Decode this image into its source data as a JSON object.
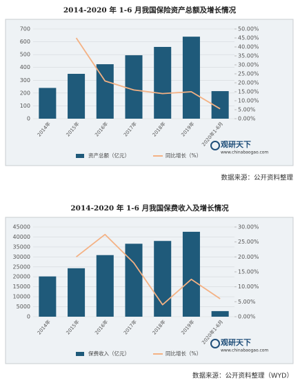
{
  "chart_data": [
    {
      "type": "bar_line",
      "title": "2014-2020 年 1-6 月我国保险资产总额及增长情况",
      "categories": [
        "2014年",
        "2015年",
        "2016年",
        "2017年",
        "2018年",
        "2019年",
        "2020年1-6月"
      ],
      "series": [
        {
          "name": "资产总额（亿元）",
          "color": "#1f5a7a",
          "values": [
            240,
            350,
            425,
            495,
            560,
            640,
            215
          ]
        },
        {
          "name": "同比增长（%）",
          "color": "#f4b183",
          "axis": "y2",
          "values": [
            null,
            45,
            21,
            16,
            14,
            15,
            5.5
          ]
        }
      ],
      "ylim": [
        0,
        700
      ],
      "yticks": [
        0,
        100,
        200,
        300,
        400,
        500,
        600,
        700
      ],
      "y2lim": [
        0,
        50
      ],
      "y2ticks": [
        {
          "value": 0,
          "label": "0.00%"
        },
        {
          "value": 5,
          "label": "5.00%"
        },
        {
          "value": 10,
          "label": "10.00%"
        },
        {
          "value": 15,
          "label": "15.00%"
        },
        {
          "value": 20,
          "label": "20.00%"
        },
        {
          "value": 25,
          "label": "25.00%"
        },
        {
          "value": 30,
          "label": "30.00%"
        },
        {
          "value": 35,
          "label": "35.00%"
        },
        {
          "value": 40,
          "label": "40.00%"
        },
        {
          "value": 45,
          "label": "45.00%"
        },
        {
          "value": 50,
          "label": "50.00%"
        }
      ],
      "grid": true,
      "brand": "观研天下",
      "brand_url": "www.chinabaogao.com",
      "source": "数据来源：公开资料整理"
    },
    {
      "type": "bar_line",
      "title": "2014-2020 年 1-6 月我国保费收入及增长情况",
      "categories": [
        "2014年",
        "2015年",
        "2016年",
        "2017年",
        "2018年",
        "2019年",
        "2020年1-6月"
      ],
      "series": [
        {
          "name": "保费收入（亿元）",
          "color": "#1f5a7a",
          "values": [
            20200,
            24300,
            30900,
            36600,
            38000,
            42600,
            2800
          ]
        },
        {
          "name": "同比增长（%）",
          "color": "#f4b183",
          "axis": "y2",
          "values": [
            null,
            20,
            27.5,
            18,
            4,
            12.5,
            6
          ]
        }
      ],
      "ylim": [
        0,
        45000
      ],
      "yticks": [
        0,
        5000,
        10000,
        15000,
        20000,
        25000,
        30000,
        35000,
        40000,
        45000
      ],
      "y2lim": [
        0,
        30
      ],
      "y2ticks": [
        {
          "value": 0,
          "label": "0.00%"
        },
        {
          "value": 5,
          "label": "5.00%"
        },
        {
          "value": 10,
          "label": "10.00%"
        },
        {
          "value": 15,
          "label": "15.00%"
        },
        {
          "value": 20,
          "label": "20.00%"
        },
        {
          "value": 25,
          "label": "25.00%"
        },
        {
          "value": 30,
          "label": "30.00%"
        }
      ],
      "grid": true,
      "brand": "观研天下",
      "brand_url": "www.chinabaogao.com",
      "source": "数据来源：公开资料整理（WYD）"
    }
  ]
}
